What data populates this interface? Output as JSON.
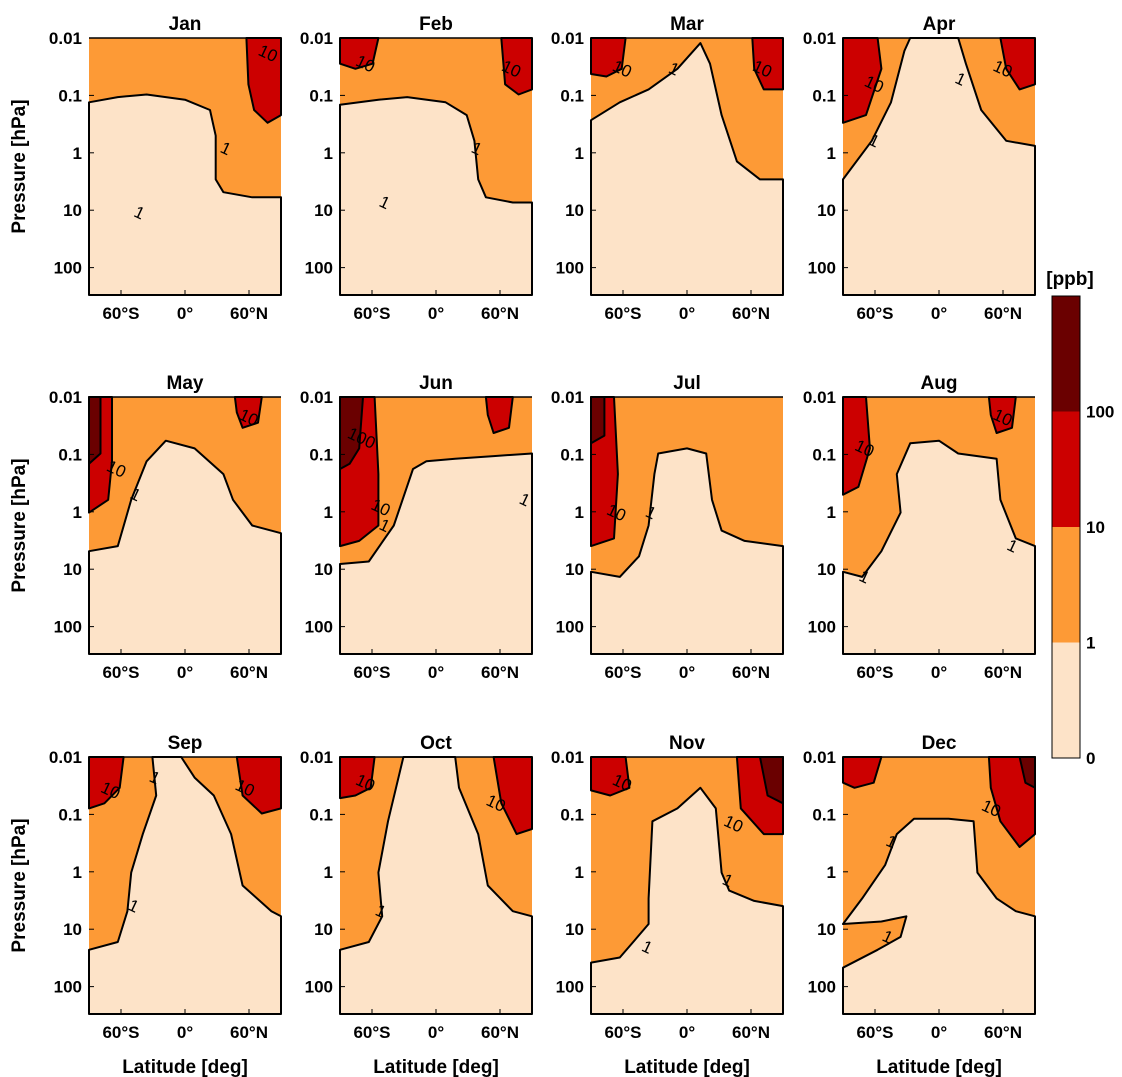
{
  "chart_data": {
    "type": "filled-contour",
    "panels": [
      "Jan",
      "Feb",
      "Mar",
      "Apr",
      "May",
      "Jun",
      "Jul",
      "Aug",
      "Sep",
      "Oct",
      "Nov",
      "Dec"
    ],
    "x_axis": {
      "label": "Latitude [deg]",
      "tick_labels": [
        "60°S",
        "0°",
        "60°N"
      ],
      "tick_values": [
        -60,
        0,
        60
      ],
      "range": [
        -90,
        90
      ]
    },
    "y_axis": {
      "label": "Pressure [hPa]",
      "tick_labels": [
        "0.01",
        "0.1",
        "1",
        "10",
        "100"
      ],
      "tick_values": [
        0.01,
        0.1,
        1,
        10,
        100
      ],
      "scale": "log",
      "reversed": true,
      "range": [
        0.01,
        300
      ]
    },
    "colorbar": {
      "title": "[ppb]",
      "tick_labels": [
        "0",
        "1",
        "10",
        "100"
      ],
      "levels": [
        0,
        1,
        10,
        100
      ],
      "colors": [
        "#fde3c8",
        "#fd9a36",
        "#cc0000",
        "#6a0000"
      ]
    },
    "contour_levels": [
      1,
      10,
      100
    ],
    "contour_label_texts": [
      "1",
      "10",
      "100"
    ]
  }
}
